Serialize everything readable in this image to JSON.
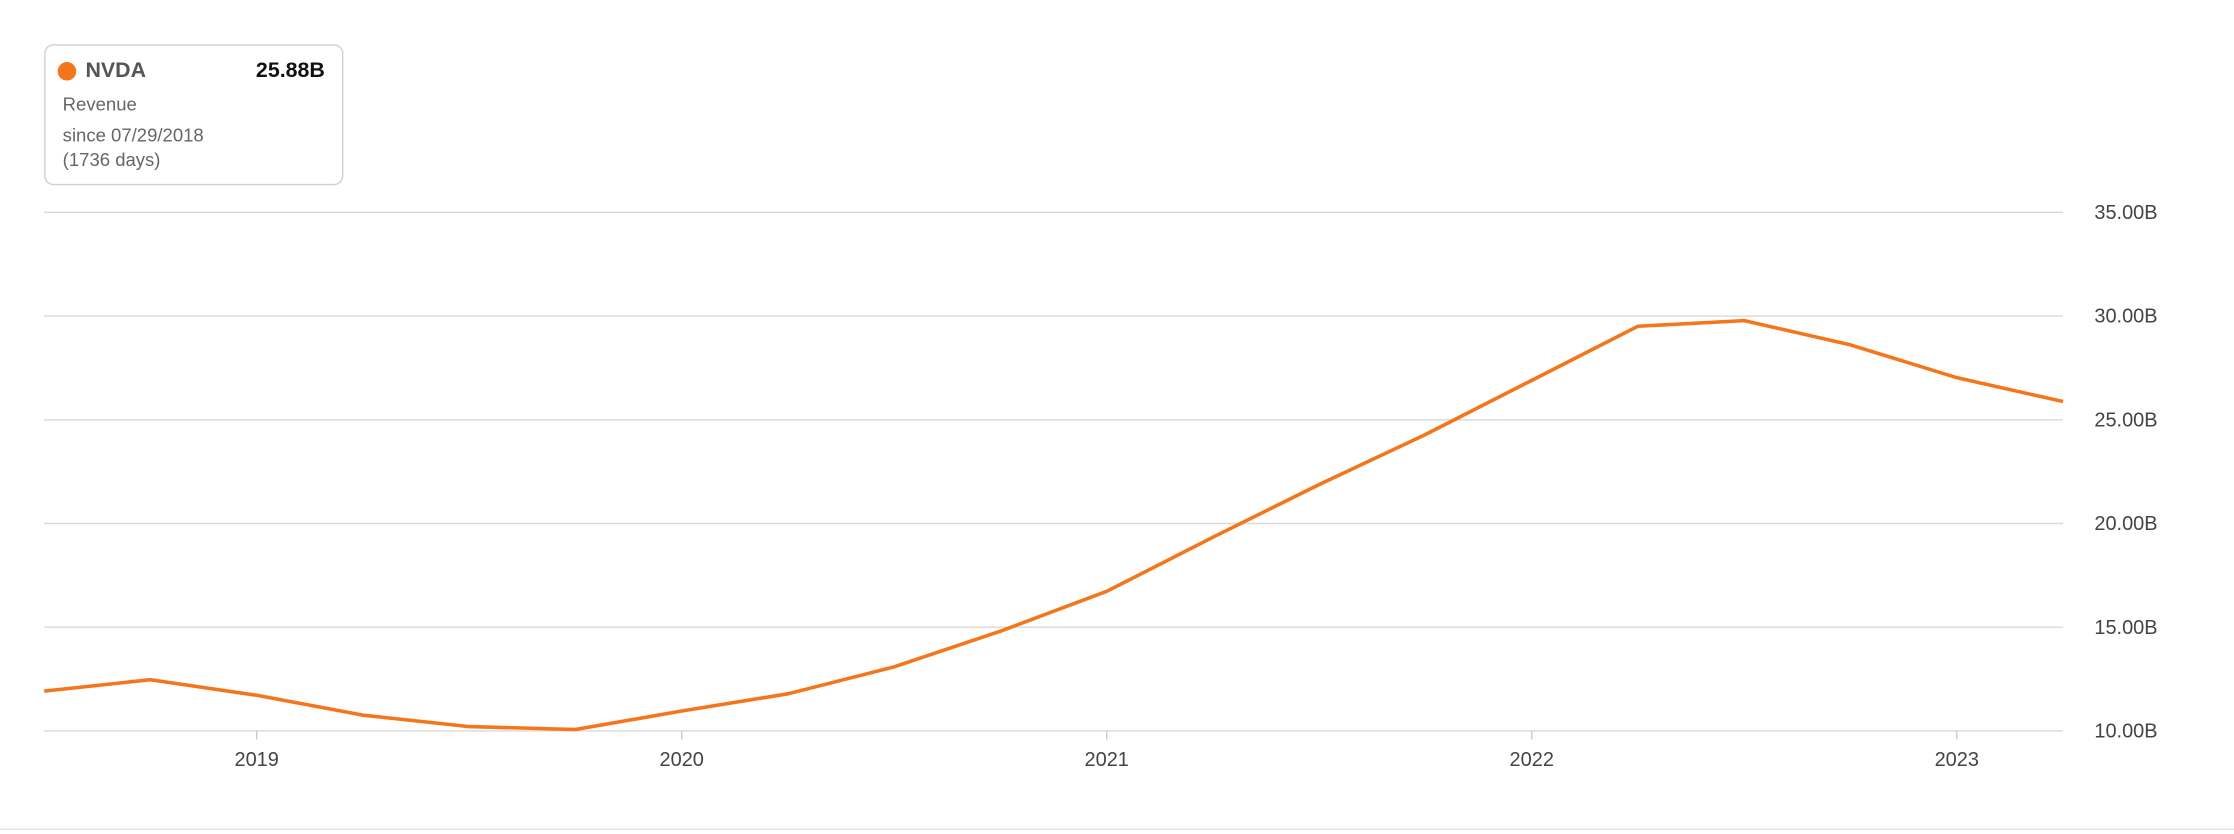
{
  "chart_data": {
    "type": "line",
    "x": [
      2018.5,
      2018.75,
      2019,
      2019.25,
      2019.5,
      2019.75,
      2020,
      2020.25,
      2020.5,
      2020.75,
      2021,
      2021.25,
      2021.5,
      2021.75,
      2022,
      2022.25,
      2022.5,
      2022.75,
      2023,
      2023.25
    ],
    "series": [
      {
        "name": "NVDA",
        "color": "#f5761a",
        "values": [
          11.92,
          12.47,
          11.72,
          10.76,
          10.21,
          10.07,
          10.96,
          11.79,
          13.09,
          14.81,
          16.73,
          19.34,
          21.88,
          24.29,
          26.9,
          29.51,
          29.78,
          28.61,
          27.03,
          25.88
        ]
      }
    ],
    "tooltip": {
      "value": "25.88B",
      "metric": "Revenue",
      "since": "since 07/29/2018",
      "days": "(1736 days)"
    },
    "xlim": [
      2018.5,
      2023.25
    ],
    "xticks": [
      2019,
      2020,
      2021,
      2022,
      2023
    ],
    "ylim": [
      10,
      35
    ],
    "yticks": [
      {
        "value": 10,
        "label": "10.00B"
      },
      {
        "value": 15,
        "label": "15.00B"
      },
      {
        "value": 20,
        "label": "20.00B"
      },
      {
        "value": 25,
        "label": "25.00B"
      },
      {
        "value": 30,
        "label": "30.00B"
      },
      {
        "value": 35,
        "label": "35.00B"
      }
    ],
    "grid": true
  }
}
